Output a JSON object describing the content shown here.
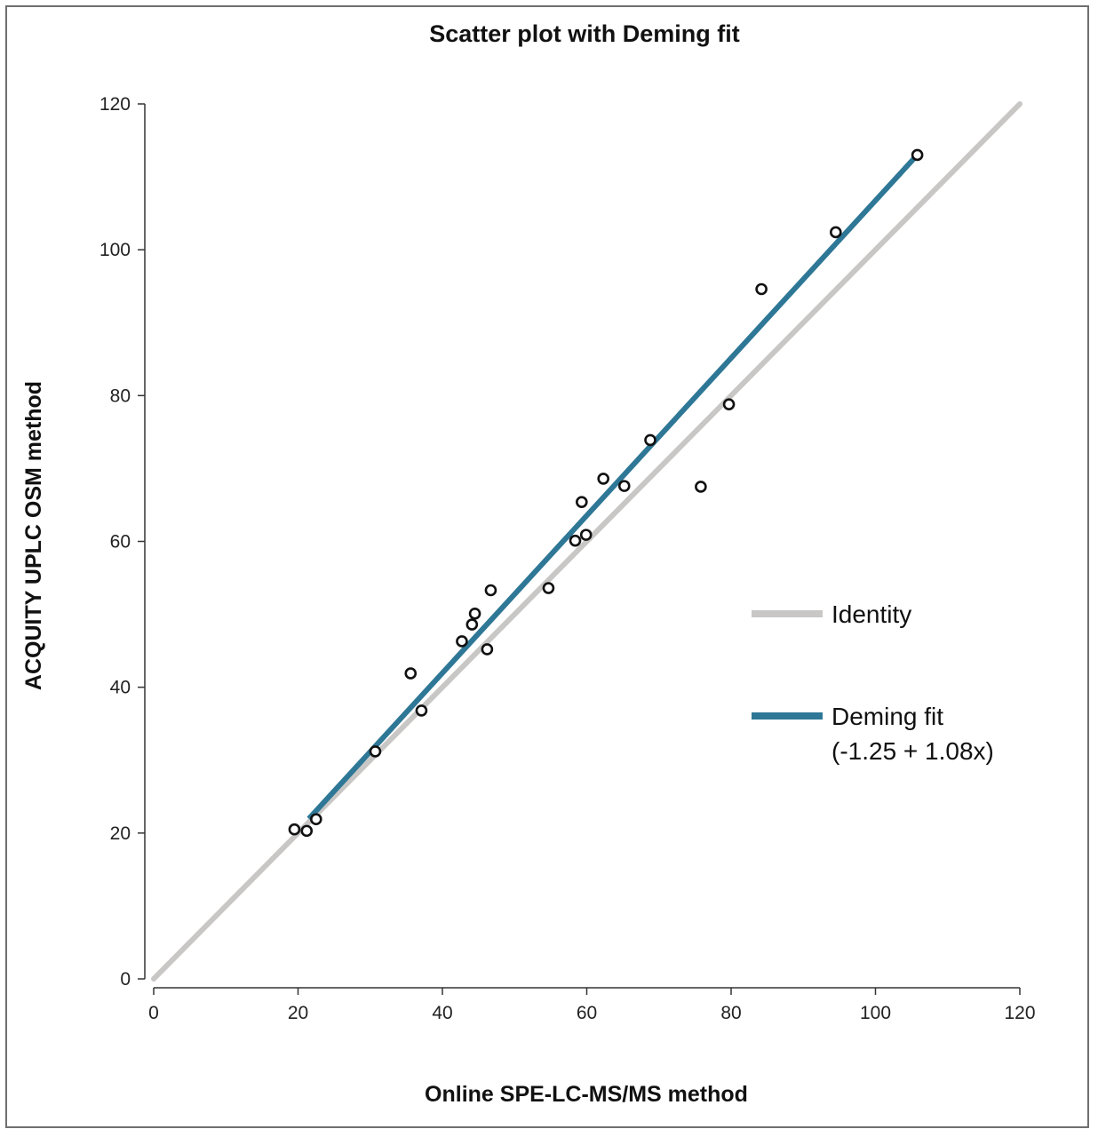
{
  "chart_data": {
    "type": "scatter",
    "title": "Scatter plot with Deming fit",
    "xlabel": "Online SPE-LC-MS/MS method",
    "ylabel": "ACQUITY UPLC OSM method",
    "xlim": [
      0,
      120
    ],
    "ylim": [
      0,
      120
    ],
    "xticks": [
      0,
      20,
      40,
      60,
      80,
      100,
      120
    ],
    "yticks": [
      0,
      20,
      40,
      60,
      80,
      100,
      120
    ],
    "grid": false,
    "legend_position": "right",
    "series": [
      {
        "points": [
          [
            19.5,
            20.5
          ],
          [
            21.2,
            20.3
          ],
          [
            22.5,
            21.9
          ],
          [
            30.7,
            31.2
          ],
          [
            35.6,
            41.9
          ],
          [
            37.1,
            36.8
          ],
          [
            42.7,
            46.3
          ],
          [
            44.1,
            48.6
          ],
          [
            44.5,
            50.1
          ],
          [
            46.2,
            45.2
          ],
          [
            46.7,
            53.3
          ],
          [
            54.7,
            53.6
          ],
          [
            58.4,
            60.1
          ],
          [
            59.3,
            65.4
          ],
          [
            59.9,
            60.9
          ],
          [
            62.3,
            68.6
          ],
          [
            65.2,
            67.6
          ],
          [
            68.8,
            73.9
          ],
          [
            75.8,
            67.5
          ],
          [
            79.7,
            78.8
          ],
          [
            84.2,
            94.6
          ],
          [
            94.5,
            102.4
          ],
          [
            105.8,
            113.0
          ]
        ]
      },
      {
        "name": "Identity",
        "line": [
          [
            0,
            0
          ],
          [
            120,
            120
          ]
        ],
        "color": "#c8c7c5"
      },
      {
        "name": "Deming fit",
        "name_detail": "(-1.25 + 1.08x)",
        "intercept": -1.25,
        "slope": 1.08,
        "x_range": [
          21.5,
          105.6
        ],
        "color": "#2e7796"
      }
    ]
  }
}
